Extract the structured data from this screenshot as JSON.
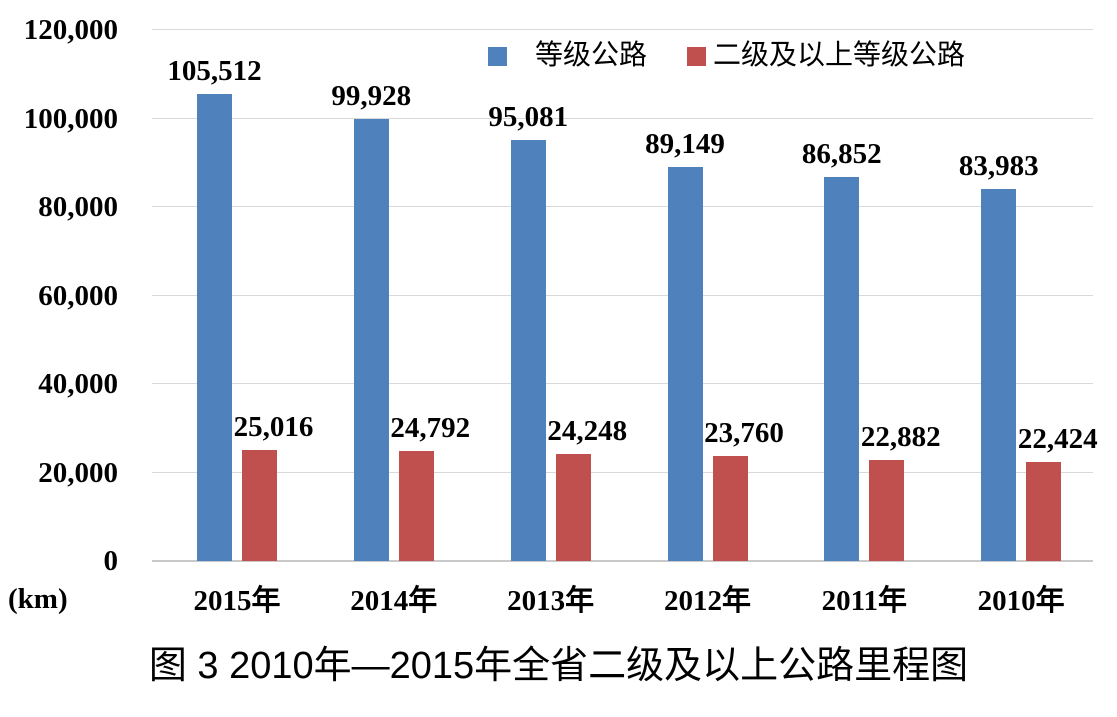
{
  "figure": {
    "caption": "图 3  2010年—2015年全省二级及以上公路里程图",
    "unit_label": "(km)"
  },
  "chart_data": {
    "type": "bar",
    "title": "图 3  2010年—2015年全省二级及以上公路里程图",
    "categories": [
      "2015年",
      "2014年",
      "2013年",
      "2012年",
      "2011年",
      "2010年"
    ],
    "series": [
      {
        "name": "等级公路",
        "color": "#4F81BD",
        "values": [
          105512,
          99928,
          95081,
          89149,
          86852,
          83983
        ],
        "labels": [
          "105,512",
          "99,928",
          "95,081",
          "89,149",
          "86,852",
          "83,983"
        ]
      },
      {
        "name": "二级及以上等级公路",
        "color": "#C0504D",
        "values": [
          25016,
          24792,
          24248,
          23760,
          22882,
          22424
        ],
        "labels": [
          "25,016",
          "24,792",
          "24,248",
          "23,760",
          "22,882",
          "22,424"
        ]
      }
    ],
    "xlabel": "",
    "ylabel": "(km)",
    "ylim": [
      0,
      120000
    ],
    "ytick_step": 20000,
    "yticks": [
      "0",
      "20,000",
      "40,000",
      "60,000",
      "80,000",
      "100,000",
      "120,000"
    ],
    "grid": true,
    "gridline_color": "#D9D9D9",
    "legend_position": "top",
    "data_labels": true
  }
}
